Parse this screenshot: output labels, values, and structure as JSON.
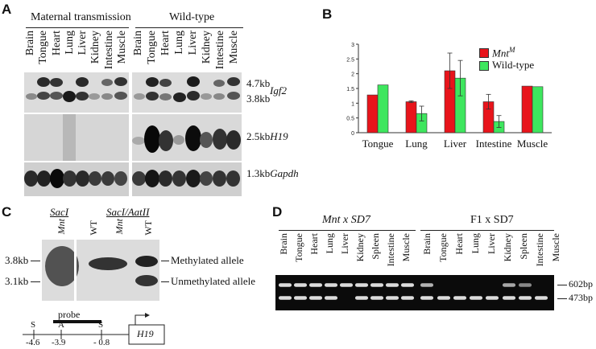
{
  "panelA": {
    "label": "A",
    "group1": "Maternal transmission",
    "group2": "Wild-type",
    "lanes": [
      "Brain",
      "Tongue",
      "Heart",
      "Lung",
      "Liver",
      "Kidney",
      "Intestine",
      "Muscle"
    ],
    "markers": [
      {
        "size": "4.7kb",
        "gene": ""
      },
      {
        "size": "3.8kb",
        "gene": ""
      },
      {
        "size": "2.5kb",
        "gene": "H19"
      },
      {
        "size": "1.3kb",
        "gene": "Gapdh"
      }
    ],
    "igf2": "Igf2"
  },
  "panelB": {
    "label": "B",
    "legend": [
      {
        "text": "Mnt",
        "sup": "M",
        "color": "#e8141b"
      },
      {
        "text": "Wild-type",
        "sup": "",
        "color": "#3ee65e"
      }
    ]
  },
  "chart_data": {
    "type": "bar",
    "categories": [
      "Tongue",
      "Lung",
      "Liver",
      "Intestine",
      "Muscle"
    ],
    "series": [
      {
        "name": "MntM",
        "values": [
          1.28,
          1.05,
          2.1,
          1.05,
          1.58
        ],
        "errors": [
          0,
          0.03,
          0.6,
          0.25,
          0
        ]
      },
      {
        "name": "Wild-type",
        "values": [
          1.62,
          0.65,
          1.85,
          0.38,
          1.56
        ],
        "errors": [
          0,
          0.25,
          0.6,
          0.2,
          0
        ]
      }
    ],
    "yticks": [
      "0",
      "0.5",
      "1",
      "1.5",
      "2",
      "2.5",
      "3"
    ],
    "ylim": [
      0,
      3
    ],
    "colors": [
      "#e8141b",
      "#3ee65e"
    ],
    "legend_position": "top-right"
  },
  "panelC": {
    "label": "C",
    "enzyme1": "SacI",
    "enzyme2": "SacI/AatII",
    "lanes": [
      "Mnt",
      "WT",
      "Mnt",
      "WT"
    ],
    "sizes": [
      "3.8kb",
      "3.1kb"
    ],
    "alleles": [
      "Methylated allele",
      "Unmethylated allele"
    ],
    "probe": "probe",
    "sites": [
      "S",
      "A",
      "S"
    ],
    "positions": [
      "-4.6",
      "-3.9",
      "- 0.8"
    ],
    "gene": "H19"
  },
  "panelD": {
    "label": "D",
    "group1": "Mnt x SD7",
    "group2": "F1 x SD7",
    "lanes": [
      "Brain",
      "Tongue",
      "Heart",
      "Lung",
      "Liver",
      "Kidney",
      "Spleen",
      "Intestine",
      "Muscle"
    ],
    "sizes": [
      "602bp",
      "473bp"
    ]
  }
}
